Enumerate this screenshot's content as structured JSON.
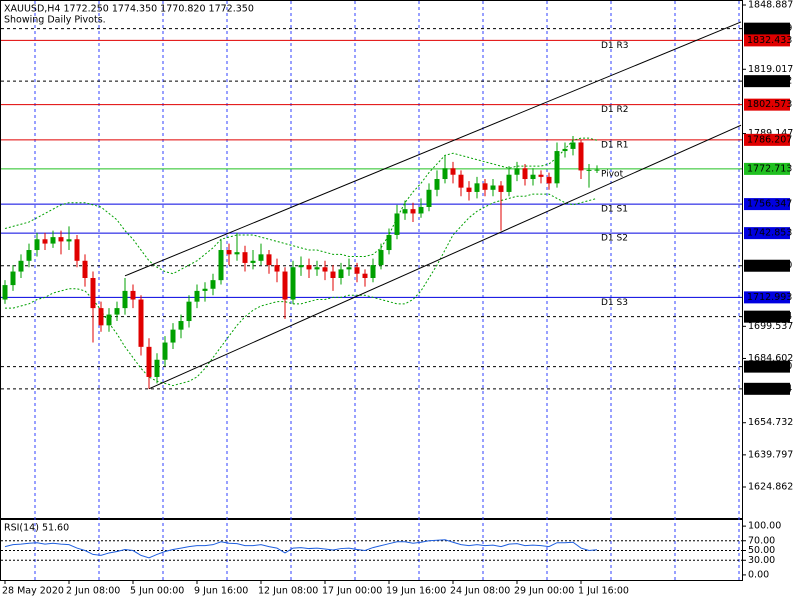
{
  "chart_data": {
    "type": "candlestick",
    "title": "XAUUSD,H4  1772.250 1774.350 1770.820 1772.350",
    "subtitle": "Showing Daily Pivots.",
    "categories": [
      "28 May 2020",
      null,
      null,
      null,
      null,
      null,
      null,
      null,
      "2 Jun 08:00",
      null,
      null,
      null,
      null,
      null,
      null,
      null,
      "5 Jun 00:00",
      null,
      null,
      null,
      null,
      null,
      null,
      null,
      "9 Jun 16:00",
      null,
      null,
      null,
      null,
      null,
      null,
      null,
      "12 Jun 08:00",
      null,
      null,
      null,
      null,
      null,
      null,
      null,
      "17 Jun 00:00",
      null,
      null,
      null,
      null,
      null,
      null,
      null,
      "19 Jun 16:00",
      null,
      null,
      null,
      null,
      null,
      null,
      null,
      "24 Jun 08:00",
      null,
      null,
      null,
      null,
      null,
      null,
      null,
      "29 Jun 00:00",
      null,
      null,
      null,
      null,
      null,
      null,
      null,
      "1 Jul 16:00",
      null,
      null
    ],
    "candles": {
      "up_color": "#00a000",
      "down_color": "#e00000",
      "open": [
        1712,
        1718.7,
        1725,
        1730,
        1735,
        1740,
        1738,
        1741,
        1739,
        1740,
        1730,
        1722,
        1708,
        1700,
        1705,
        1708,
        1716,
        1712,
        1690,
        1676,
        1684,
        1692,
        1698,
        1702,
        1711,
        1716,
        1717,
        1721,
        1735,
        1733,
        1734,
        1729,
        1730,
        1733,
        1728,
        1725,
        1712,
        1727,
        1728,
        1726,
        1727,
        1725,
        1722,
        1726,
        1727,
        1724,
        1722,
        1728,
        1735,
        1742,
        1752,
        1754,
        1752,
        1755,
        1763,
        1768,
        1773,
        1770,
        1764,
        1762,
        1766,
        1763,
        1765,
        1762,
        1770,
        1773,
        1768,
        1770,
        1769,
        1766,
        1781,
        1782,
        1785,
        1772,
        1772.25
      ],
      "high": [
        1721,
        1728,
        1733,
        1738,
        1743,
        1743,
        1744,
        1744,
        1746,
        1742,
        1733,
        1725,
        1711,
        1708,
        1711,
        1722,
        1719,
        1714,
        1694,
        1687,
        1695,
        1701,
        1705,
        1714,
        1719,
        1720,
        1724,
        1740,
        1738,
        1743,
        1737,
        1735,
        1738,
        1735,
        1731,
        1727,
        1730,
        1732,
        1731,
        1730,
        1730,
        1728,
        1729,
        1731,
        1729,
        1726,
        1731,
        1738,
        1745,
        1756,
        1758,
        1757,
        1759,
        1766,
        1772,
        1779,
        1776,
        1772,
        1767,
        1769,
        1768,
        1768,
        1767,
        1774,
        1776,
        1775,
        1773,
        1772,
        1771,
        1785,
        1785,
        1788,
        1786,
        1775,
        1774.35
      ],
      "low": [
        1710,
        1716,
        1722,
        1727,
        1732,
        1735,
        1736,
        1733,
        1735,
        1727,
        1718,
        1692,
        1697,
        1697,
        1702,
        1705,
        1708,
        1686,
        1670.5,
        1673,
        1681,
        1689,
        1694,
        1699,
        1708,
        1711,
        1714,
        1719,
        1728,
        1730,
        1725,
        1726,
        1728,
        1724,
        1720,
        1703,
        1710,
        1723,
        1722,
        1723,
        1721,
        1716,
        1719,
        1723,
        1720,
        1718,
        1720,
        1726,
        1733,
        1740,
        1749,
        1748,
        1750,
        1753,
        1760,
        1766,
        1766,
        1760,
        1758,
        1759,
        1760,
        1760,
        1744,
        1760,
        1767,
        1765,
        1765,
        1766,
        1763,
        1764,
        1778,
        1779,
        1768,
        1764,
        1770.82
      ],
      "close": [
        1718.7,
        1725,
        1730,
        1735,
        1740,
        1738,
        1741,
        1739,
        1740,
        1730,
        1722,
        1708,
        1700,
        1705,
        1708,
        1716,
        1712,
        1690,
        1676,
        1684,
        1692,
        1698,
        1702,
        1711,
        1716,
        1717,
        1721,
        1735,
        1733,
        1734,
        1729,
        1730,
        1733,
        1728,
        1725,
        1712,
        1727,
        1728,
        1726,
        1727,
        1725,
        1722,
        1726,
        1727,
        1724,
        1722,
        1728,
        1735,
        1742,
        1752,
        1754,
        1752,
        1755,
        1763,
        1768,
        1773,
        1770,
        1764,
        1762,
        1766,
        1763,
        1765,
        1762,
        1770,
        1773,
        1768,
        1770,
        1769,
        1766,
        1781,
        1782,
        1785,
        1772,
        1772.25,
        1772.35
      ]
    },
    "bands": {
      "color": "#00a000",
      "upper": [
        1745,
        1746,
        1747,
        1748,
        1750,
        1752,
        1754,
        1756,
        1757,
        1757,
        1757,
        1756,
        1755,
        1752,
        1749,
        1744,
        1740,
        1735,
        1730,
        1727,
        1725,
        1724,
        1726,
        1728,
        1730,
        1733,
        1736,
        1740,
        1741,
        1742,
        1742,
        1742,
        1741,
        1740,
        1739,
        1738,
        1737,
        1736,
        1735,
        1735,
        1734,
        1733,
        1733,
        1732,
        1732,
        1732,
        1733,
        1736,
        1742,
        1750,
        1757,
        1762,
        1766,
        1771,
        1775,
        1779,
        1780,
        1779,
        1778,
        1777,
        1776,
        1775,
        1774,
        1773,
        1774,
        1774,
        1774,
        1774,
        1775,
        1778,
        1782,
        1786,
        1787,
        1787,
        1786
      ],
      "lower": [
        1708,
        1708,
        1709,
        1710,
        1712,
        1713,
        1715,
        1716,
        1717,
        1717,
        1716,
        1712,
        1707,
        1701,
        1696,
        1690,
        1685,
        1680,
        1676,
        1674,
        1673,
        1672,
        1673,
        1674,
        1676,
        1680,
        1685,
        1690,
        1695,
        1700,
        1704,
        1707,
        1709,
        1710,
        1711,
        1711,
        1710,
        1710,
        1711,
        1712,
        1712,
        1713,
        1713,
        1714,
        1714,
        1714,
        1713,
        1712,
        1711,
        1710,
        1710,
        1712,
        1716,
        1722,
        1728,
        1735,
        1742,
        1746,
        1750,
        1753,
        1755,
        1757,
        1758,
        1759,
        1760,
        1760,
        1761,
        1761,
        1761,
        1759,
        1757,
        1756,
        1757,
        1758,
        1759
      ]
    },
    "channel": {
      "color": "#000000",
      "lines": [
        {
          "x": [
            15,
            92
          ],
          "values": [
            1723,
            1841
          ]
        },
        {
          "x": [
            18,
            92
          ],
          "values": [
            1670.494,
            1793
          ]
        }
      ]
    },
    "levels": [
      {
        "value": 1837.889,
        "label": "1837.889",
        "color": "#000000",
        "style": "dashed"
      },
      {
        "value": 1832.433,
        "label": "1832.433",
        "color": "#e00000",
        "style": "solid",
        "pivot": "D1 R3"
      },
      {
        "value": 1813.492,
        "label": "1813.492",
        "color": "#000000",
        "style": "dashed"
      },
      {
        "value": 1802.573,
        "label": "1802.573",
        "color": "#e00000",
        "style": "solid",
        "pivot": "D1 R2"
      },
      {
        "value": 1786.207,
        "label": "1786.207",
        "color": "#e00000",
        "style": "solid",
        "pivot": "D1 R1"
      },
      {
        "value": 1772.713,
        "label": "1772.713",
        "color": "#20c020",
        "style": "solid",
        "pivot": "Pivot"
      },
      {
        "value": 1756.347,
        "label": "1756.347",
        "color": "#0000e0",
        "style": "solid",
        "pivot": "D1 S1"
      },
      {
        "value": 1742.853,
        "label": "1742.853",
        "color": "#0000e0",
        "style": "solid",
        "pivot": "D1 S2"
      },
      {
        "value": 1727.7,
        "label": "1727.700",
        "color": "#000000",
        "style": "dashed"
      },
      {
        "value": 1712.993,
        "label": "1712.993",
        "color": "#0000e0",
        "style": "solid",
        "pivot": "D1 S3"
      },
      {
        "value": 1704.034,
        "label": "1704.034",
        "color": "#000000",
        "style": "dashed"
      },
      {
        "value": 1680.81,
        "label": "1680.810",
        "color": "#000000",
        "style": "dashed"
      },
      {
        "value": 1670.494,
        "label": "1670.494",
        "color": "#000000",
        "style": "dashed"
      }
    ],
    "ylim": [
      1610.45,
      1851.21
    ],
    "yticks": [
      1848.887,
      1819.017,
      1789.147,
      1699.537,
      1684.602,
      1654.732,
      1639.797,
      1624.862
    ],
    "rsi": {
      "title": "RSI(14) 51.60",
      "color": "#2060e0",
      "values": [
        58,
        62,
        63,
        65,
        66,
        63,
        65,
        63,
        62,
        55,
        50,
        42,
        40,
        45,
        48,
        52,
        50,
        40,
        35,
        42,
        48,
        52,
        55,
        58,
        60,
        60,
        62,
        68,
        65,
        64,
        60,
        60,
        62,
        58,
        55,
        45,
        55,
        56,
        54,
        55,
        53,
        51,
        54,
        55,
        52,
        50,
        56,
        60,
        64,
        68,
        68,
        65,
        67,
        70,
        71,
        72,
        67,
        62,
        60,
        62,
        60,
        61,
        58,
        63,
        64,
        60,
        61,
        60,
        58,
        66,
        66,
        67,
        55,
        50,
        51.6
      ],
      "ylim": [
        -12.5,
        114.6
      ],
      "yticks": [
        {
          "value": 100,
          "label": "100.00"
        },
        {
          "value": 70,
          "label": "70.00"
        },
        {
          "value": 50,
          "label": "50.00"
        },
        {
          "value": 30,
          "label": "30.00"
        },
        {
          "value": 0,
          "label": "0.00"
        }
      ],
      "levels": [
        70,
        50,
        30
      ]
    }
  }
}
